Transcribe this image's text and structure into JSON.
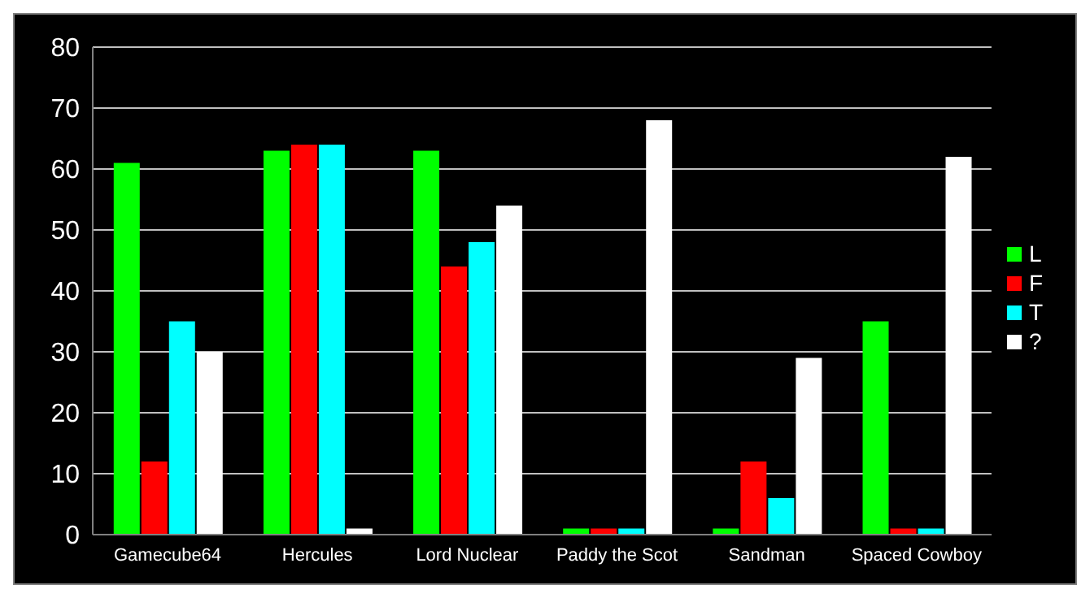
{
  "chart_data": {
    "type": "bar",
    "categories": [
      "Gamecube64",
      "Hercules",
      "Lord Nuclear",
      "Paddy the Scot",
      "Sandman",
      "Spaced Cowboy"
    ],
    "series": [
      {
        "name": "L",
        "color": "#00ff00",
        "values": [
          61,
          63,
          63,
          1,
          1,
          35
        ]
      },
      {
        "name": "F",
        "color": "#ff0000",
        "values": [
          12,
          64,
          44,
          1,
          12,
          1
        ]
      },
      {
        "name": "T",
        "color": "#00ffff",
        "values": [
          35,
          64,
          48,
          1,
          6,
          1
        ]
      },
      {
        "name": "?",
        "color": "#ffffff",
        "values": [
          30,
          1,
          54,
          68,
          29,
          62
        ]
      }
    ],
    "ylim": [
      0,
      80
    ],
    "yticks": [
      0,
      10,
      20,
      30,
      40,
      50,
      60,
      70,
      80
    ],
    "grid": "y",
    "legend": "right"
  }
}
